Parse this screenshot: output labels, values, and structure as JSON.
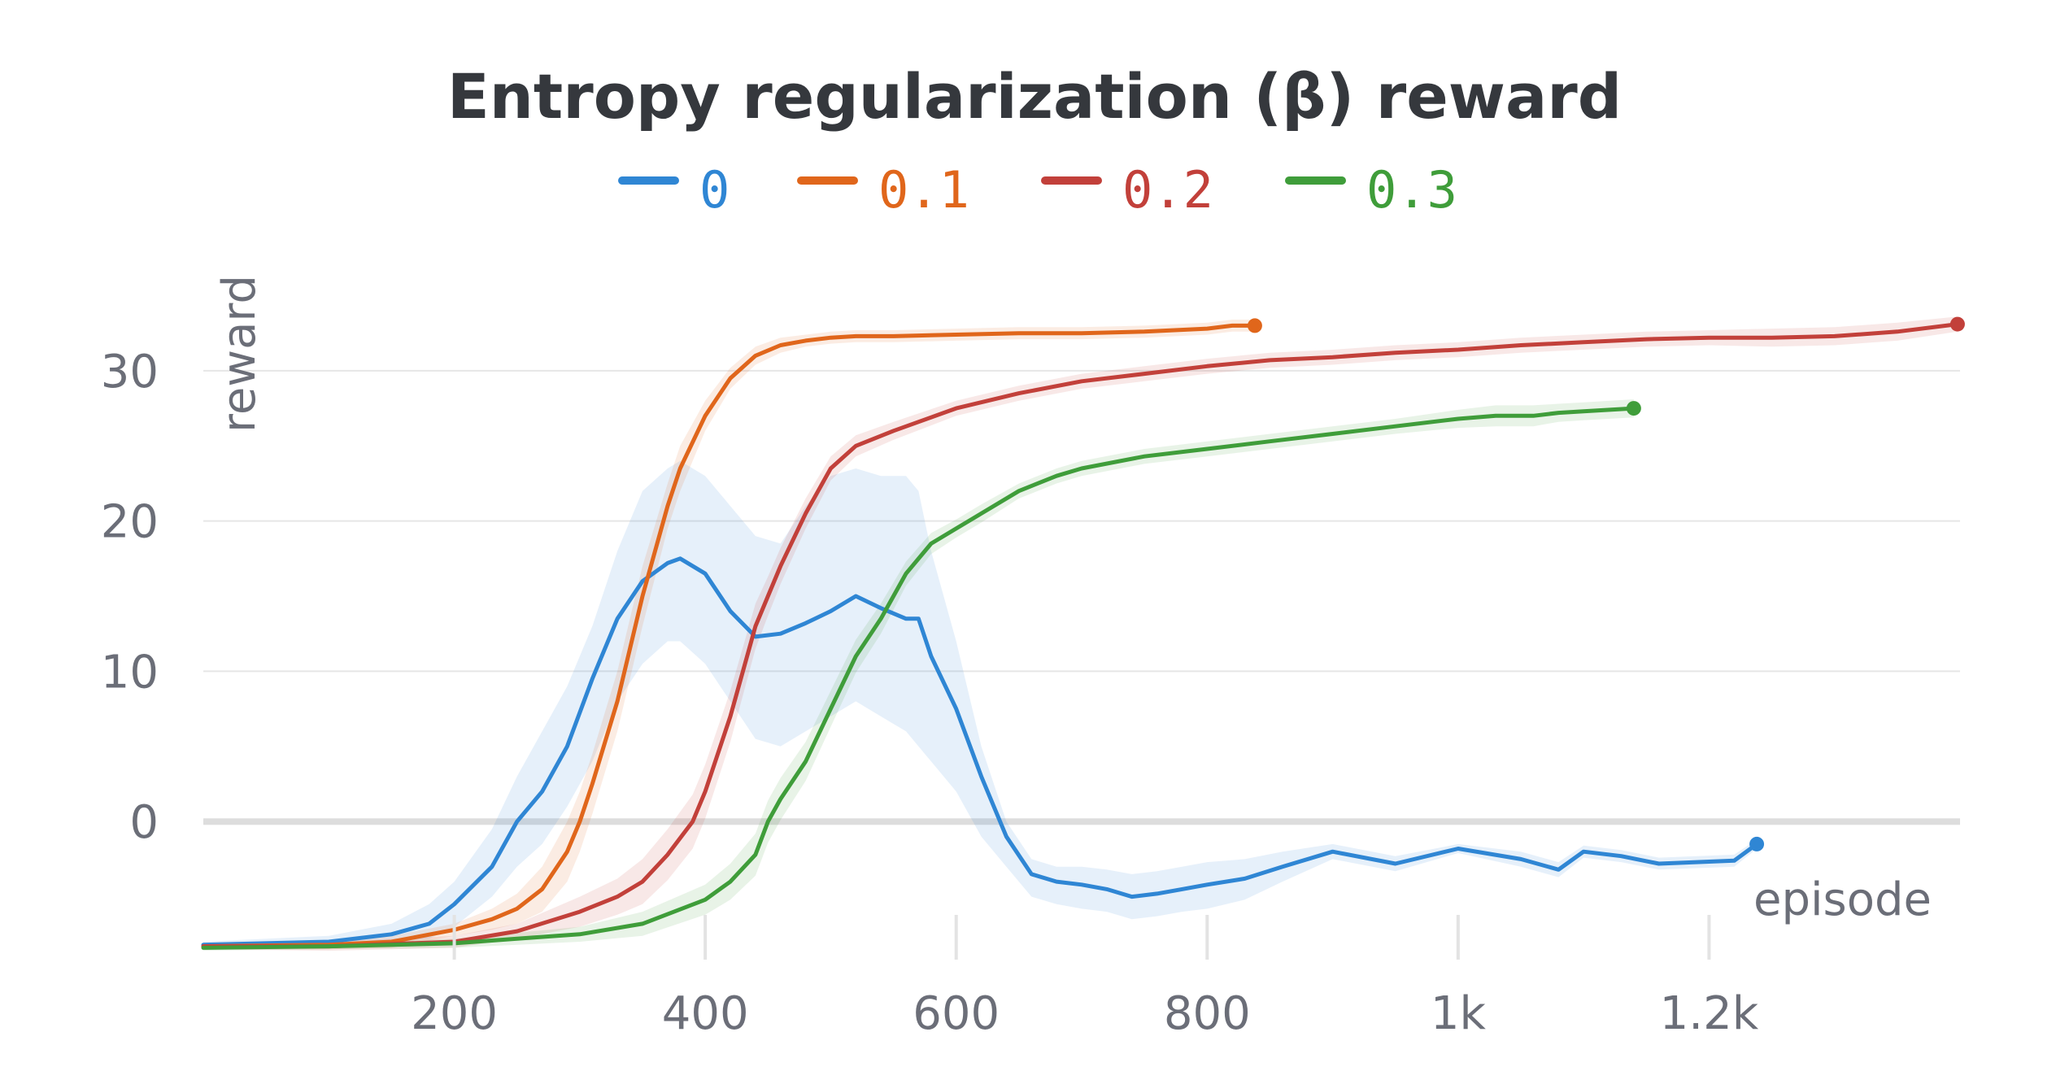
{
  "chart_data": {
    "type": "line",
    "title": "Entropy regularization (β) reward",
    "xlabel": "episode",
    "ylabel": "reward",
    "xlim": [
      0,
      1400
    ],
    "ylim": [
      -10,
      36
    ],
    "y_ticks": [
      0,
      10,
      20,
      30
    ],
    "x_ticks": [
      200,
      400,
      600,
      800,
      1000,
      1200
    ],
    "x_tick_labels": [
      "200",
      "400",
      "600",
      "800",
      "1k",
      "1.2k"
    ],
    "y_tick_labels": [
      "0",
      "10",
      "20",
      "30"
    ],
    "grid": true,
    "legend_position": "top",
    "series": [
      {
        "name": "0",
        "color": "#2f86d4",
        "x": [
          0,
          100,
          150,
          180,
          200,
          230,
          250,
          270,
          290,
          310,
          330,
          350,
          370,
          380,
          400,
          420,
          440,
          460,
          480,
          500,
          520,
          540,
          560,
          570,
          580,
          600,
          620,
          640,
          660,
          680,
          700,
          720,
          740,
          760,
          780,
          800,
          830,
          860,
          900,
          950,
          1000,
          1050,
          1080,
          1100,
          1130,
          1160,
          1190,
          1220,
          1238
        ],
        "y": [
          -8.2,
          -8,
          -7.5,
          -6.8,
          -5.5,
          -3,
          0,
          2,
          5,
          9.5,
          13.5,
          16,
          17.2,
          17.5,
          16.5,
          14,
          12.3,
          12.5,
          13.2,
          14,
          15,
          14.2,
          13.5,
          13.5,
          11,
          7.5,
          3,
          -1,
          -3.5,
          -4,
          -4.2,
          -4.5,
          -5,
          -4.8,
          -4.5,
          -4.2,
          -3.8,
          -3,
          -2,
          -2.8,
          -1.8,
          -2.5,
          -3.2,
          -2,
          -2.3,
          -2.8,
          -2.7,
          -2.6,
          -1.5
        ],
        "band_upper": [
          -8,
          -7.6,
          -6.8,
          -5.5,
          -4,
          -0.5,
          3,
          6,
          9,
          13,
          18,
          22,
          23.5,
          24,
          23,
          21,
          19,
          18.5,
          21,
          23,
          23.5,
          23,
          23,
          22,
          18,
          12,
          5,
          0,
          -2.5,
          -3,
          -3,
          -3.2,
          -3.5,
          -3.3,
          -3,
          -2.7,
          -2.5,
          -2,
          -1.5,
          -2.3,
          -1.5,
          -2,
          -2.7,
          -1.6,
          -1.9,
          -2.4,
          -2.3,
          -2.2,
          -1.2
        ],
        "band_lower": [
          -8.4,
          -8.3,
          -8,
          -7.8,
          -7,
          -5,
          -3,
          -1.5,
          1,
          4,
          8,
          10.5,
          12,
          12,
          10.5,
          8,
          5.5,
          5,
          6,
          7,
          8,
          7,
          6,
          5,
          4,
          2,
          -1,
          -3,
          -5,
          -5.5,
          -5.8,
          -6,
          -6.5,
          -6.3,
          -6,
          -5.8,
          -5.2,
          -4,
          -2.5,
          -3.3,
          -2.1,
          -3,
          -3.7,
          -2.4,
          -2.7,
          -3.2,
          -3.1,
          -3,
          -1.8
        ]
      },
      {
        "name": "0.1",
        "color": "#e0661b",
        "x": [
          0,
          100,
          150,
          200,
          230,
          250,
          270,
          290,
          300,
          310,
          330,
          350,
          370,
          380,
          400,
          420,
          440,
          460,
          480,
          500,
          520,
          550,
          600,
          650,
          700,
          750,
          800,
          820,
          838
        ],
        "y": [
          -8.3,
          -8.2,
          -8,
          -7.2,
          -6.5,
          -5.8,
          -4.5,
          -2,
          0,
          2.5,
          8,
          15,
          21,
          23.5,
          27,
          29.5,
          31,
          31.7,
          32,
          32.2,
          32.3,
          32.3,
          32.4,
          32.5,
          32.5,
          32.6,
          32.8,
          33,
          33
        ],
        "band_upper": [
          -8.1,
          -7.9,
          -7.6,
          -6.8,
          -5.8,
          -4.8,
          -3,
          0,
          2,
          4.5,
          10,
          17,
          22.5,
          25,
          28,
          30.2,
          31.6,
          32.2,
          32.4,
          32.6,
          32.7,
          32.7,
          32.8,
          32.9,
          32.9,
          33,
          33.2,
          33.4,
          33.4
        ],
        "band_lower": [
          -8.5,
          -8.5,
          -8.4,
          -7.6,
          -7.2,
          -6.8,
          -6,
          -4,
          -2,
          0.5,
          6,
          13,
          19.5,
          22,
          26,
          28.8,
          30.4,
          31.2,
          31.6,
          31.8,
          31.9,
          31.9,
          32,
          32.1,
          32.1,
          32.2,
          32.4,
          32.6,
          32.6
        ]
      },
      {
        "name": "0.2",
        "color": "#c2403a",
        "x": [
          0,
          100,
          200,
          250,
          300,
          330,
          350,
          370,
          390,
          400,
          420,
          440,
          450,
          460,
          480,
          500,
          520,
          550,
          600,
          650,
          700,
          750,
          800,
          850,
          900,
          950,
          1000,
          1050,
          1100,
          1150,
          1200,
          1250,
          1300,
          1350,
          1398
        ],
        "y": [
          -8.3,
          -8.3,
          -8,
          -7.3,
          -6,
          -5,
          -4,
          -2.2,
          0,
          2,
          7,
          13,
          15,
          17,
          20.5,
          23.5,
          25,
          26,
          27.5,
          28.5,
          29.3,
          29.8,
          30.3,
          30.7,
          30.9,
          31.2,
          31.4,
          31.7,
          31.9,
          32.1,
          32.2,
          32.2,
          32.3,
          32.6,
          33.1
        ],
        "band_upper": [
          -8.1,
          -8,
          -7.6,
          -6.8,
          -5,
          -3.8,
          -2.5,
          -0.5,
          1.8,
          3.8,
          8.7,
          14.5,
          16.3,
          18.2,
          21.5,
          24.3,
          25.7,
          26.6,
          28,
          29,
          29.8,
          30.3,
          30.8,
          31.2,
          31.4,
          31.7,
          31.9,
          32.2,
          32.4,
          32.6,
          32.7,
          32.8,
          32.9,
          33.2,
          33.6
        ],
        "band_lower": [
          -8.5,
          -8.6,
          -8.4,
          -7.8,
          -7,
          -6.2,
          -5.5,
          -3.9,
          -1.8,
          0.2,
          5.3,
          11.5,
          13.7,
          15.8,
          19.5,
          22.7,
          24.3,
          25.4,
          27,
          28,
          28.8,
          29.3,
          29.8,
          30.2,
          30.4,
          30.7,
          30.9,
          31.2,
          31.4,
          31.6,
          31.7,
          31.6,
          31.7,
          32,
          32.6
        ]
      },
      {
        "name": "0.3",
        "color": "#3f9d3a",
        "x": [
          0,
          100,
          200,
          250,
          300,
          350,
          400,
          420,
          440,
          450,
          460,
          480,
          500,
          520,
          540,
          550,
          560,
          580,
          600,
          620,
          650,
          680,
          700,
          750,
          800,
          850,
          900,
          950,
          1000,
          1030,
          1060,
          1080,
          1100,
          1140
        ],
        "y": [
          -8.4,
          -8.3,
          -8.1,
          -7.8,
          -7.5,
          -6.8,
          -5.2,
          -4,
          -2.2,
          0,
          1.5,
          4,
          7.5,
          11,
          13.5,
          15,
          16.5,
          18.5,
          19.5,
          20.5,
          22,
          23,
          23.5,
          24.3,
          24.8,
          25.3,
          25.8,
          26.3,
          26.8,
          27,
          27,
          27.2,
          27.3,
          27.5
        ],
        "band_upper": [
          -8.2,
          -8.1,
          -7.8,
          -7.4,
          -7,
          -6,
          -4.2,
          -2.8,
          -0.8,
          1.4,
          2.9,
          5.3,
          8.7,
          12.1,
          14.5,
          15.9,
          17.3,
          19.2,
          20.1,
          21.1,
          22.5,
          23.5,
          24,
          24.8,
          25.3,
          25.8,
          26.3,
          26.8,
          27.4,
          27.7,
          27.7,
          27.8,
          27.9,
          28.1
        ],
        "band_lower": [
          -8.6,
          -8.5,
          -8.4,
          -8.2,
          -8,
          -7.6,
          -6.2,
          -5.2,
          -3.6,
          -1.4,
          0.1,
          2.7,
          6.3,
          9.9,
          12.5,
          14.1,
          15.7,
          17.8,
          18.9,
          19.9,
          21.5,
          22.5,
          23,
          23.8,
          24.3,
          24.8,
          25.3,
          25.8,
          26.2,
          26.3,
          26.3,
          26.6,
          26.7,
          26.9
        ]
      }
    ]
  }
}
